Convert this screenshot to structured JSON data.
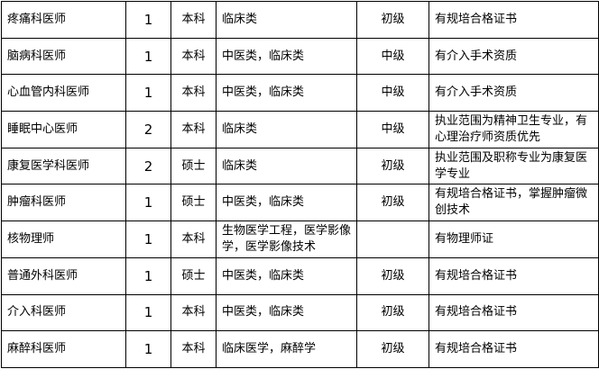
{
  "rows": [
    {
      "position": "疼痛科医师",
      "count": "1",
      "degree": "本科",
      "major": "临床类",
      "title": "初级",
      "requirement": "有规培合格证书"
    },
    {
      "position": "脑病科医师",
      "count": "1",
      "degree": "本科",
      "major": "中医类，临床类",
      "title": "中级",
      "requirement": "有介入手术资质"
    },
    {
      "position": "心血管内科医师",
      "count": "1",
      "degree": "本科",
      "major": "中医类，临床类",
      "title": "中级",
      "requirement": "有介入手术资质"
    },
    {
      "position": "睡眠中心医师",
      "count": "2",
      "degree": "本科",
      "major": "临床类",
      "title": "中级",
      "requirement": "执业范围为精神卫生专业，有心理治疗师资质优先"
    },
    {
      "position": "康复医学科医师",
      "count": "2",
      "degree": "硕士",
      "major": "临床类",
      "title": "初级",
      "requirement": "执业范围及职称专业为康复医学专业"
    },
    {
      "position": "肿瘤科医师",
      "count": "1",
      "degree": "硕士",
      "major": "中医类，临床类",
      "title": "初级",
      "requirement": "有规培合格证书，掌握肿瘤微创技术"
    },
    {
      "position": "核物理师",
      "count": "1",
      "degree": "本科",
      "major": "生物医学工程，医学影像学，医学影像技术",
      "title": "",
      "requirement": "有物理师证"
    },
    {
      "position": "普通外科医师",
      "count": "1",
      "degree": "硕士",
      "major": "中医类，临床类",
      "title": "初级",
      "requirement": "有规培合格证书"
    },
    {
      "position": "介入科医师",
      "count": "1",
      "degree": "本科",
      "major": "中医类，临床类",
      "title": "初级",
      "requirement": "有规培合格证书"
    },
    {
      "position": "麻醉科医师",
      "count": "1",
      "degree": "本科",
      "major": "临床医学，麻醉学",
      "title": "初级",
      "requirement": "有规培合格证书"
    }
  ]
}
